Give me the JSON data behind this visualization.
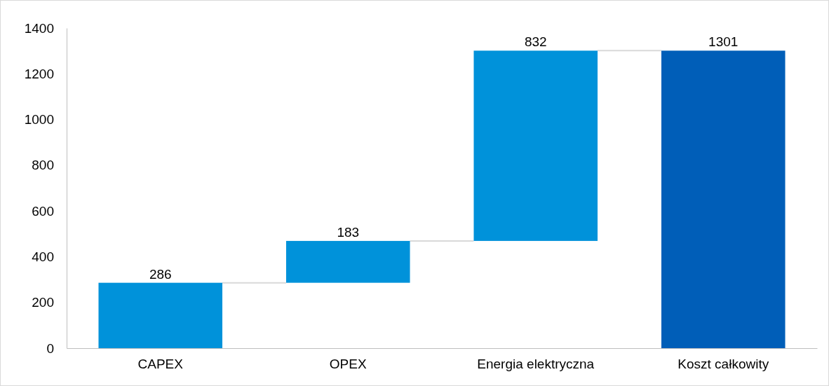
{
  "chart_data": {
    "type": "bar",
    "categories": [
      "CAPEX",
      "OPEX",
      "Energia elektryczna",
      "Koszt całkowity"
    ],
    "values": [
      286,
      183,
      832,
      1301
    ],
    "base": [
      0,
      286,
      469,
      0
    ],
    "colors": [
      "#0092da",
      "#0092da",
      "#0092da",
      "#005eb8"
    ],
    "ylim": [
      0,
      1400
    ],
    "yticks": [
      0,
      200,
      400,
      600,
      800,
      1000,
      1200,
      1400
    ],
    "data_labels": true,
    "grid": false
  }
}
